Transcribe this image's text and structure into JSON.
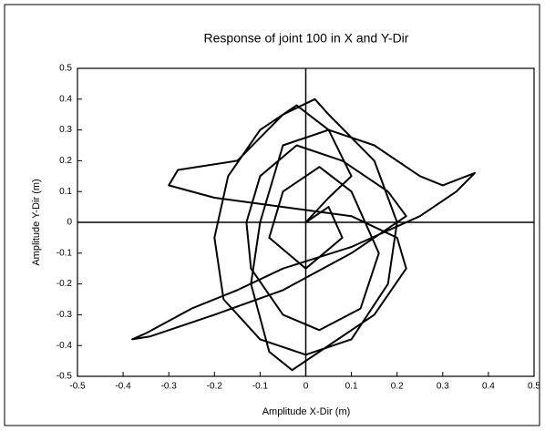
{
  "chart_data": {
    "type": "line",
    "title": "Response of joint 100 in X and Y-Dir",
    "xlabel": "Amplitude X-Dir (m)",
    "ylabel": "Amplitude Y-Dir (m)",
    "xlim": [
      -0.5,
      0.5
    ],
    "ylim": [
      -0.5,
      0.5
    ],
    "xticks": [
      -0.5,
      -0.4,
      -0.3,
      -0.2,
      -0.1,
      0,
      0.1,
      0.2,
      0.3,
      0.4,
      0.5
    ],
    "yticks": [
      -0.5,
      -0.4,
      -0.3,
      -0.2,
      -0.1,
      0,
      0.1,
      0.2,
      0.3,
      0.4,
      0.5
    ],
    "color": "#000000",
    "x": [
      0,
      0.05,
      0.1,
      0.05,
      -0.02,
      -0.1,
      -0.17,
      -0.2,
      -0.18,
      -0.1,
      0,
      0.1,
      0.18,
      0.2,
      0.15,
      0.05,
      0.02,
      -0.05,
      -0.15,
      -0.28,
      -0.3,
      -0.2,
      -0.05,
      0.1,
      0.2,
      0.22,
      0.15,
      0.05,
      -0.03,
      -0.08,
      -0.12,
      -0.1,
      -0.05,
      0.05,
      0.15,
      0.25,
      0.3,
      0.37,
      0.33,
      0.25,
      0.1,
      -0.05,
      -0.15,
      -0.25,
      -0.35,
      -0.38,
      -0.34,
      -0.2,
      -0.05,
      0.1,
      0.22,
      0.18,
      0.08,
      -0.02,
      -0.1,
      -0.13,
      -0.12,
      -0.05,
      0.03,
      0.12,
      0.16,
      0.1,
      0.03,
      -0.05,
      -0.08,
      0,
      0.08,
      0.05,
      0
    ],
    "values": [
      0,
      0.08,
      0.15,
      0.3,
      0.38,
      0.3,
      0.15,
      -0.05,
      -0.25,
      -0.38,
      -0.43,
      -0.38,
      -0.2,
      0,
      0.2,
      0.35,
      0.4,
      0.35,
      0.2,
      0.17,
      0.12,
      0.08,
      0.05,
      0.02,
      -0.05,
      -0.15,
      -0.3,
      -0.4,
      -0.48,
      -0.42,
      -0.2,
      0,
      0.25,
      0.3,
      0.25,
      0.15,
      0.12,
      0.16,
      0.1,
      0.02,
      -0.08,
      -0.15,
      -0.22,
      -0.28,
      -0.36,
      -0.38,
      -0.37,
      -0.3,
      -0.22,
      -0.1,
      0.02,
      0.1,
      0.2,
      0.25,
      0.15,
      0,
      -0.15,
      -0.3,
      -0.35,
      -0.28,
      -0.1,
      0.1,
      0.18,
      0.1,
      -0.05,
      -0.15,
      -0.05,
      0.05,
      0
    ]
  }
}
